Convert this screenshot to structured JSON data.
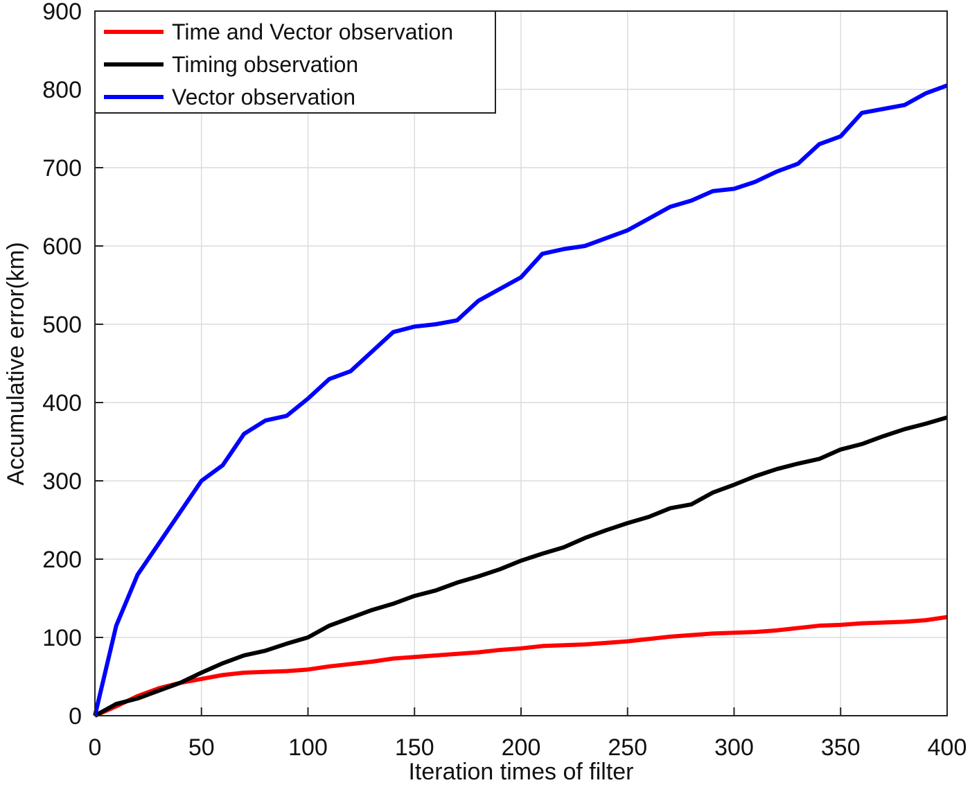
{
  "chart_data": {
    "type": "line",
    "xlabel": "Iteration times of filter",
    "ylabel": "Accumulative error(km)",
    "x": [
      0,
      10,
      20,
      30,
      40,
      50,
      60,
      70,
      80,
      90,
      100,
      110,
      120,
      130,
      140,
      150,
      160,
      170,
      180,
      190,
      200,
      210,
      220,
      230,
      240,
      250,
      260,
      270,
      280,
      290,
      300,
      310,
      320,
      330,
      340,
      350,
      360,
      370,
      380,
      390,
      400
    ],
    "series": [
      {
        "name": "Time and Vector observation",
        "color": "#ff0000",
        "values": [
          0,
          12,
          25,
          35,
          42,
          47,
          52,
          55,
          56,
          57,
          59,
          63,
          66,
          69,
          73,
          75,
          77,
          79,
          81,
          84,
          86,
          89,
          90,
          91,
          93,
          95,
          98,
          101,
          103,
          105,
          106,
          107,
          109,
          112,
          115,
          116,
          118,
          119,
          120,
          122,
          126
        ]
      },
      {
        "name": "Timing observation",
        "color": "#000000",
        "values": [
          0,
          15,
          22,
          32,
          42,
          55,
          67,
          77,
          83,
          92,
          100,
          115,
          125,
          135,
          143,
          153,
          160,
          170,
          178,
          187,
          198,
          207,
          215,
          227,
          237,
          246,
          254,
          265,
          270,
          285,
          295,
          306,
          315,
          322,
          328,
          340,
          347,
          357,
          366,
          373,
          381
        ]
      },
      {
        "name": "Vector observation",
        "color": "#0000ff",
        "values": [
          0,
          115,
          180,
          220,
          260,
          300,
          320,
          360,
          377,
          383,
          405,
          430,
          440,
          465,
          490,
          497,
          500,
          505,
          530,
          545,
          560,
          590,
          596,
          600,
          610,
          620,
          635,
          650,
          658,
          670,
          673,
          682,
          695,
          705,
          730,
          740,
          770,
          775,
          780,
          795,
          805
        ]
      }
    ],
    "xlim": [
      0,
      400
    ],
    "xticks": [
      0,
      50,
      100,
      150,
      200,
      250,
      300,
      350,
      400
    ],
    "ylim": [
      0,
      900
    ],
    "yticks": [
      0,
      100,
      200,
      300,
      400,
      500,
      600,
      700,
      800,
      900
    ],
    "grid": true,
    "legend": "upper left"
  }
}
